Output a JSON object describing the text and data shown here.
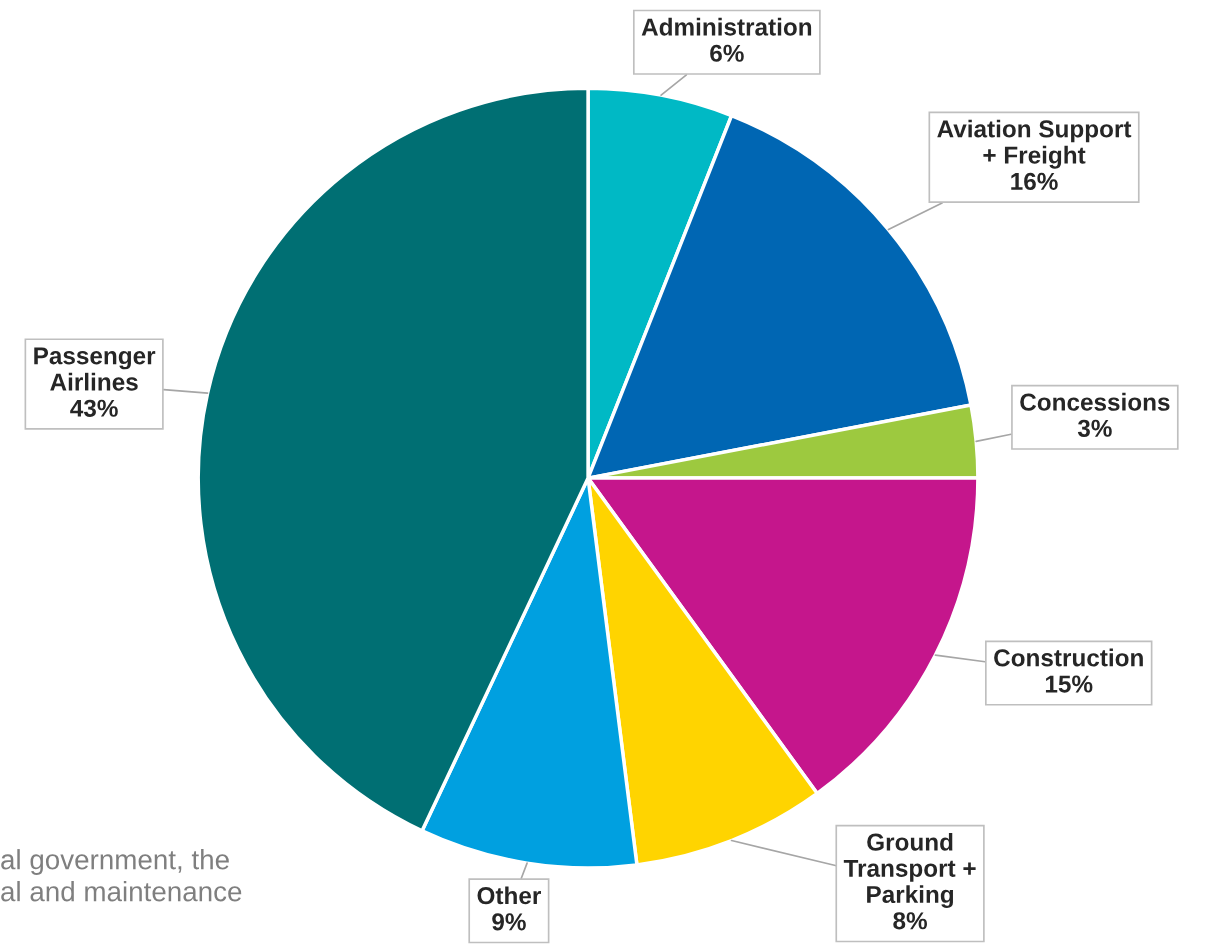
{
  "chart_data": {
    "type": "pie",
    "categories": [
      "Administration",
      "Aviation Support\n+ Freight",
      "Concessions",
      "Construction",
      "Ground\nTransport +\nParking",
      "Other",
      "Passenger\nAirlines"
    ],
    "values": [
      6,
      16,
      3,
      15,
      8,
      9,
      43
    ],
    "value_labels": [
      "6%",
      "16%",
      "3%",
      "15%",
      "8%",
      "9%",
      "43%"
    ],
    "colors": [
      "#00b9c5",
      "#0066b3",
      "#9dc93f",
      "#c5168c",
      "#ffd400",
      "#00a0e0",
      "#006f73"
    ],
    "annotations": [
      "al government, the\nal and maintenance"
    ],
    "legend": false
  }
}
